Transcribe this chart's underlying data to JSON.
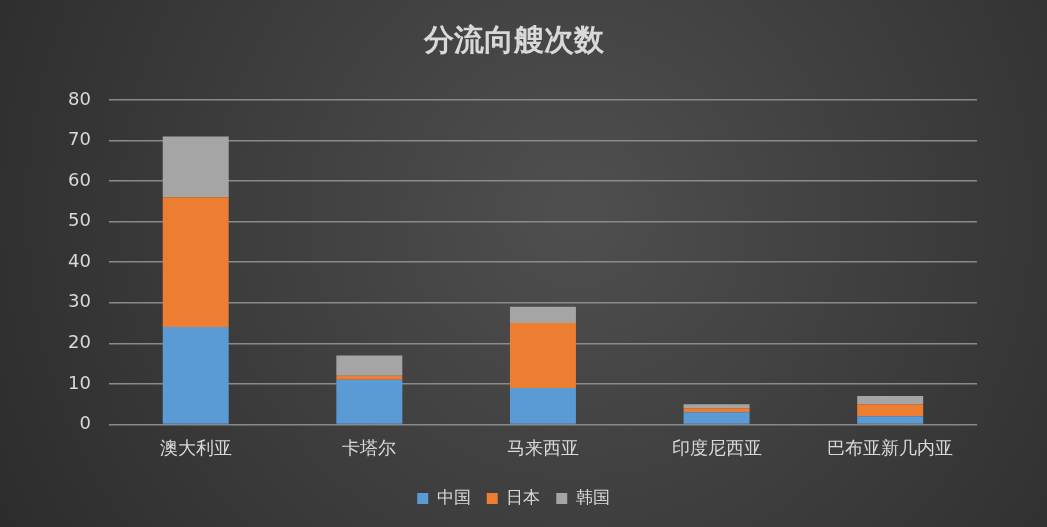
{
  "chart_data": {
    "type": "bar",
    "title": "分流向艘次数",
    "categories": [
      "澳大利亚",
      "卡塔尔",
      "马来西亚",
      "印度尼西亚",
      "巴布亚新几内亚"
    ],
    "series": [
      {
        "name": "中国",
        "color": "#5b9bd5",
        "values": [
          24,
          11,
          9,
          3,
          2
        ]
      },
      {
        "name": "日本",
        "color": "#ed7d31",
        "values": [
          32,
          1,
          16,
          1,
          3
        ]
      },
      {
        "name": "韩国",
        "color": "#a5a5a5",
        "values": [
          15,
          5,
          4,
          1,
          2
        ]
      }
    ],
    "stacked": true,
    "ylim": [
      0,
      80
    ],
    "yticks": [
      0,
      10,
      20,
      30,
      40,
      50,
      60,
      70,
      80
    ],
    "grid": "y",
    "legend": "bottom"
  }
}
